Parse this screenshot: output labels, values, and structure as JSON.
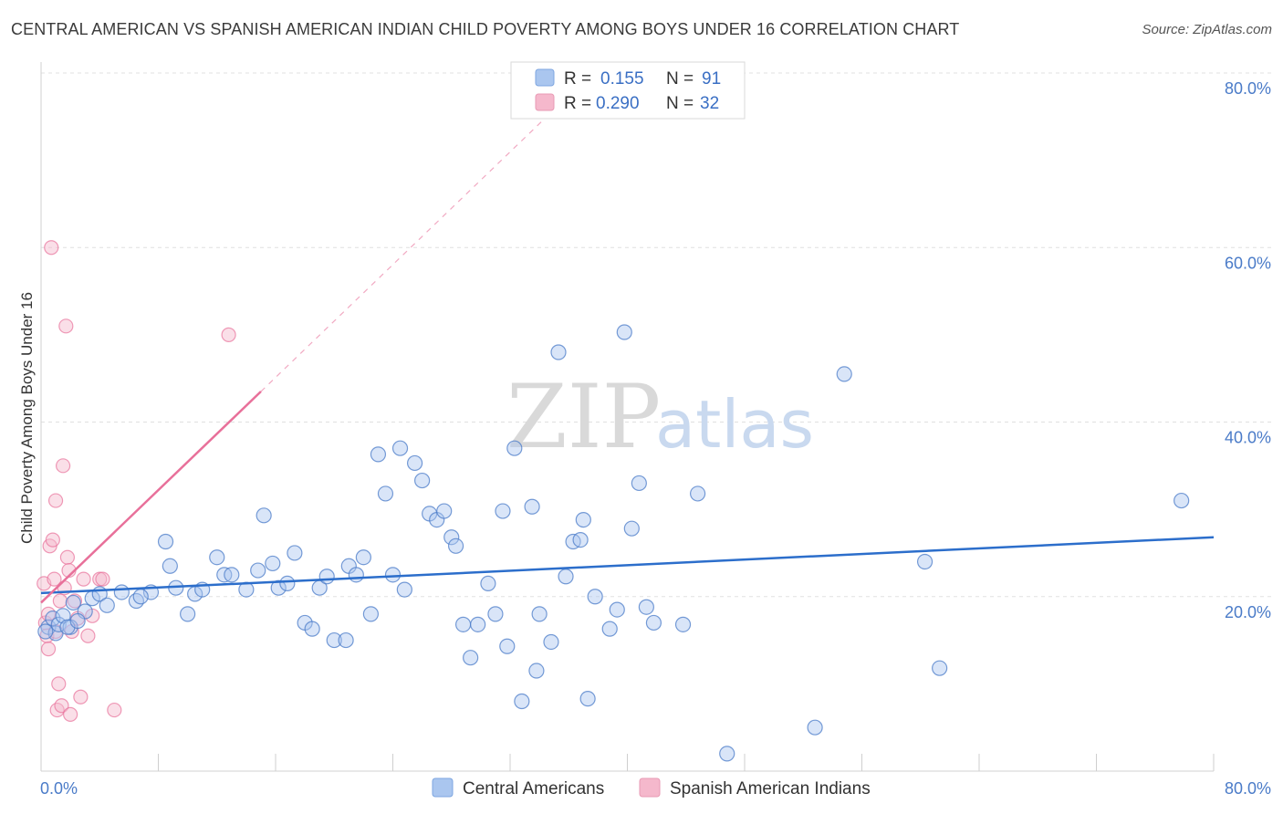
{
  "title": "CENTRAL AMERICAN VS SPANISH AMERICAN INDIAN CHILD POVERTY AMONG BOYS UNDER 16 CORRELATION CHART",
  "source": "Source: ZipAtlas.com",
  "watermark": {
    "zip": "ZIP",
    "atlas": "atlas"
  },
  "colors": {
    "blue": "#4a7bc8",
    "blue_fill": "#aac6ef",
    "blue_line": "#2c6ecb",
    "pink": "#e8709a",
    "pink_fill": "#f5b8cc",
    "grid": "#e0e0e0"
  },
  "legend": {
    "rows": [
      {
        "r_label": "R =",
        "r_value": "0.155",
        "n_label": "N =",
        "n_value": "91"
      },
      {
        "r_label": "R =",
        "r_value": "0.290",
        "n_label": "N =",
        "n_value": "32"
      }
    ]
  },
  "chart_data": {
    "type": "scatter",
    "title": "CENTRAL AMERICAN VS SPANISH AMERICAN INDIAN CHILD POVERTY AMONG BOYS UNDER 16 CORRELATION CHART",
    "xlabel": "",
    "ylabel": "Child Poverty Among Boys Under 16",
    "xlim": [
      0,
      80
    ],
    "ylim": [
      0,
      80
    ],
    "x_tick_labels": [
      "0.0%",
      "80.0%"
    ],
    "y_ticks": [
      20,
      40,
      60,
      80
    ],
    "y_tick_labels": [
      "20.0%",
      "40.0%",
      "60.0%",
      "80.0%"
    ],
    "grid": true,
    "series": [
      {
        "name": "Central Americans",
        "r": 0.155,
        "n": 91,
        "trend": {
          "x0": 0,
          "y0": 20.4,
          "x1": 80,
          "y1": 26.8
        },
        "points": [
          [
            0.5,
            16.5
          ],
          [
            0.8,
            17.5
          ],
          [
            1.0,
            15.8
          ],
          [
            1.2,
            16.8
          ],
          [
            1.5,
            17.8
          ],
          [
            2.0,
            16.5
          ],
          [
            2.2,
            19.3
          ],
          [
            3.0,
            18.3
          ],
          [
            3.5,
            19.8
          ],
          [
            4.0,
            20.3
          ],
          [
            5.5,
            20.5
          ],
          [
            4.5,
            19.0
          ],
          [
            6.5,
            19.5
          ],
          [
            7.5,
            20.5
          ],
          [
            8.5,
            26.3
          ],
          [
            8.8,
            23.5
          ],
          [
            9.2,
            21.0
          ],
          [
            10.0,
            18.0
          ],
          [
            10.5,
            20.3
          ],
          [
            11.0,
            20.8
          ],
          [
            12.0,
            24.5
          ],
          [
            12.5,
            22.5
          ],
          [
            13.0,
            22.5
          ],
          [
            14.0,
            20.8
          ],
          [
            14.8,
            23.0
          ],
          [
            15.2,
            29.3
          ],
          [
            15.8,
            23.8
          ],
          [
            16.2,
            21.0
          ],
          [
            16.8,
            21.5
          ],
          [
            17.3,
            25.0
          ],
          [
            18.0,
            17.0
          ],
          [
            18.5,
            16.3
          ],
          [
            19.0,
            21.0
          ],
          [
            19.5,
            22.3
          ],
          [
            20.0,
            15.0
          ],
          [
            21.0,
            23.5
          ],
          [
            20.8,
            15.0
          ],
          [
            21.5,
            22.5
          ],
          [
            22.0,
            24.5
          ],
          [
            22.5,
            18.0
          ],
          [
            23.0,
            36.3
          ],
          [
            23.5,
            31.8
          ],
          [
            24.0,
            22.5
          ],
          [
            24.5,
            37.0
          ],
          [
            24.8,
            20.8
          ],
          [
            25.5,
            35.3
          ],
          [
            26.0,
            33.3
          ],
          [
            26.5,
            29.5
          ],
          [
            27.0,
            28.8
          ],
          [
            27.5,
            29.8
          ],
          [
            28.0,
            26.8
          ],
          [
            28.3,
            25.8
          ],
          [
            28.8,
            16.8
          ],
          [
            29.3,
            13.0
          ],
          [
            29.8,
            16.8
          ],
          [
            30.5,
            21.5
          ],
          [
            31.0,
            18.0
          ],
          [
            31.5,
            29.8
          ],
          [
            31.8,
            14.3
          ],
          [
            32.3,
            37.0
          ],
          [
            32.8,
            8.0
          ],
          [
            33.5,
            30.3
          ],
          [
            33.8,
            11.5
          ],
          [
            34.0,
            18.0
          ],
          [
            34.8,
            14.8
          ],
          [
            35.3,
            48.0
          ],
          [
            35.8,
            22.3
          ],
          [
            36.3,
            26.3
          ],
          [
            36.8,
            26.5
          ],
          [
            37.0,
            28.8
          ],
          [
            37.3,
            8.3
          ],
          [
            37.8,
            20.0
          ],
          [
            38.8,
            16.3
          ],
          [
            39.3,
            18.5
          ],
          [
            39.8,
            50.3
          ],
          [
            40.3,
            27.8
          ],
          [
            40.8,
            33.0
          ],
          [
            41.3,
            18.8
          ],
          [
            41.8,
            17.0
          ],
          [
            43.8,
            16.8
          ],
          [
            44.8,
            31.8
          ],
          [
            46.8,
            2.0
          ],
          [
            52.8,
            5.0
          ],
          [
            54.8,
            45.5
          ],
          [
            60.3,
            24.0
          ],
          [
            61.3,
            11.8
          ],
          [
            77.8,
            31.0
          ],
          [
            0.3,
            16.0
          ],
          [
            1.8,
            16.5
          ],
          [
            2.5,
            17.2
          ],
          [
            6.8,
            20.0
          ]
        ]
      },
      {
        "name": "Spanish American Indians",
        "r": 0.29,
        "n": 32,
        "trend": {
          "x0": 0,
          "y0": 19.3,
          "x1": 15,
          "y1": 43.5
        },
        "trend_dashed": {
          "x0": 15,
          "y0": 43.5,
          "x1": 34.5,
          "y1": 75.0
        },
        "points": [
          [
            0.2,
            21.5
          ],
          [
            0.3,
            17.0
          ],
          [
            0.4,
            15.5
          ],
          [
            0.5,
            14.0
          ],
          [
            0.6,
            25.8
          ],
          [
            0.7,
            60.0
          ],
          [
            0.8,
            26.5
          ],
          [
            0.9,
            22.0
          ],
          [
            1.0,
            31.0
          ],
          [
            1.1,
            7.0
          ],
          [
            1.2,
            10.0
          ],
          [
            1.3,
            19.5
          ],
          [
            1.4,
            7.5
          ],
          [
            1.5,
            35.0
          ],
          [
            1.6,
            21.0
          ],
          [
            1.7,
            51.0
          ],
          [
            1.8,
            24.5
          ],
          [
            1.9,
            23.0
          ],
          [
            2.0,
            6.5
          ],
          [
            2.1,
            16.0
          ],
          [
            2.3,
            19.5
          ],
          [
            2.5,
            17.5
          ],
          [
            2.7,
            8.5
          ],
          [
            2.9,
            22.0
          ],
          [
            3.2,
            15.5
          ],
          [
            3.5,
            17.8
          ],
          [
            4.0,
            22.0
          ],
          [
            4.2,
            22.0
          ],
          [
            5.0,
            7.0
          ],
          [
            12.8,
            50.0
          ],
          [
            0.5,
            18.0
          ],
          [
            1.0,
            16.0
          ]
        ]
      }
    ]
  },
  "bottom_legend": {
    "items": [
      "Central Americans",
      "Spanish American Indians"
    ]
  }
}
